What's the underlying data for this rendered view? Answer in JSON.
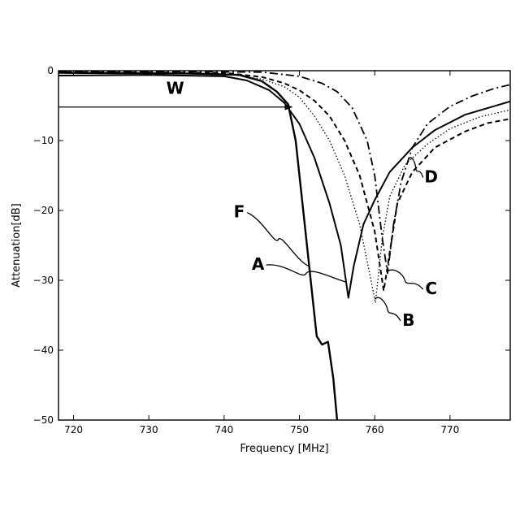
{
  "chart_data": {
    "type": "line",
    "title": "",
    "xlabel": "Frequency [MHz]",
    "ylabel": "Attenuation[dB]",
    "xlim": [
      718,
      778
    ],
    "ylim": [
      -50,
      0
    ],
    "x_ticks": [
      720,
      730,
      740,
      750,
      760,
      770
    ],
    "y_ticks": [
      0,
      -10,
      -20,
      -30,
      -40,
      -50
    ],
    "x_tick_labels": [
      "720",
      "730",
      "740",
      "750",
      "760",
      "770"
    ],
    "y_tick_labels": [
      "0",
      "−10",
      "−20",
      "−30",
      "−40",
      "−50"
    ],
    "grid": false,
    "series": [
      {
        "name": "A",
        "style": "solid",
        "points": [
          [
            718,
            -0.7
          ],
          [
            730,
            -0.6
          ],
          [
            740,
            -0.8
          ],
          [
            743,
            -1.4
          ],
          [
            746,
            -2.8
          ],
          [
            748,
            -4.6
          ],
          [
            750,
            -7.6
          ],
          [
            752,
            -12.5
          ],
          [
            754,
            -19
          ],
          [
            755.5,
            -25
          ],
          [
            756.5,
            -32.5
          ],
          [
            757.2,
            -28
          ],
          [
            758.5,
            -22
          ],
          [
            760,
            -18.5
          ],
          [
            762,
            -14.5
          ],
          [
            765,
            -11
          ],
          [
            768,
            -8.5
          ],
          [
            772,
            -6.3
          ],
          [
            778,
            -4.4
          ]
        ]
      },
      {
        "name": "B",
        "style": "dotted",
        "points": [
          [
            718,
            -0.3
          ],
          [
            740,
            -0.4
          ],
          [
            745,
            -1.2
          ],
          [
            748,
            -2.3
          ],
          [
            750,
            -3.8
          ],
          [
            752,
            -6.5
          ],
          [
            754,
            -10
          ],
          [
            756,
            -15
          ],
          [
            758,
            -22
          ],
          [
            759.5,
            -30
          ],
          [
            760.1,
            -33.2
          ],
          [
            761,
            -24
          ],
          [
            762,
            -18
          ],
          [
            764,
            -13.5
          ],
          [
            767,
            -10.5
          ],
          [
            770,
            -8.3
          ],
          [
            774,
            -6.6
          ],
          [
            778,
            -5.6
          ]
        ]
      },
      {
        "name": "C",
        "style": "dashed",
        "points": [
          [
            718,
            -0.2
          ],
          [
            740,
            -0.3
          ],
          [
            745,
            -0.9
          ],
          [
            748,
            -1.8
          ],
          [
            750,
            -2.8
          ],
          [
            752,
            -4.3
          ],
          [
            754,
            -6.5
          ],
          [
            756,
            -10
          ],
          [
            758,
            -15
          ],
          [
            760,
            -23
          ],
          [
            761.2,
            -31.5
          ],
          [
            762,
            -26
          ],
          [
            763,
            -19
          ],
          [
            765,
            -14.5
          ],
          [
            768,
            -11
          ],
          [
            772,
            -8.7
          ],
          [
            775,
            -7.5
          ],
          [
            778,
            -6.9
          ]
        ]
      },
      {
        "name": "D",
        "style": "dashdot",
        "points": [
          [
            718,
            -0.1
          ],
          [
            745,
            -0.2
          ],
          [
            750,
            -0.8
          ],
          [
            753,
            -1.8
          ],
          [
            755,
            -3
          ],
          [
            757,
            -5.3
          ],
          [
            759,
            -10
          ],
          [
            760,
            -15
          ],
          [
            761,
            -24
          ],
          [
            761.7,
            -29
          ],
          [
            762.5,
            -22
          ],
          [
            763.5,
            -16
          ],
          [
            765,
            -11
          ],
          [
            767,
            -7.6
          ],
          [
            770,
            -5.1
          ],
          [
            773,
            -3.6
          ],
          [
            776,
            -2.5
          ],
          [
            778,
            -2
          ]
        ]
      },
      {
        "name": "F",
        "style": "solid-thick",
        "points": [
          [
            718,
            -0.3
          ],
          [
            735,
            -0.4
          ],
          [
            742,
            -0.6
          ],
          [
            745,
            -1.5
          ],
          [
            747,
            -3
          ],
          [
            748.5,
            -4.8
          ],
          [
            749.5,
            -10
          ],
          [
            750.5,
            -20
          ],
          [
            751.5,
            -30
          ],
          [
            752.3,
            -38
          ],
          [
            753,
            -39.2
          ],
          [
            753.8,
            -38.8
          ],
          [
            754.5,
            -44
          ],
          [
            755,
            -50
          ]
        ]
      }
    ],
    "annotations": [
      {
        "text": "W",
        "x": 733.5,
        "y": -3.3
      },
      {
        "text": "A",
        "x": 744.5,
        "y": -28.5
      },
      {
        "text": "B",
        "x": 764.5,
        "y": -36.5
      },
      {
        "text": "C",
        "x": 767.5,
        "y": -32
      },
      {
        "text": "D",
        "x": 767.5,
        "y": -16
      },
      {
        "text": "F",
        "x": 742,
        "y": -21
      }
    ]
  }
}
